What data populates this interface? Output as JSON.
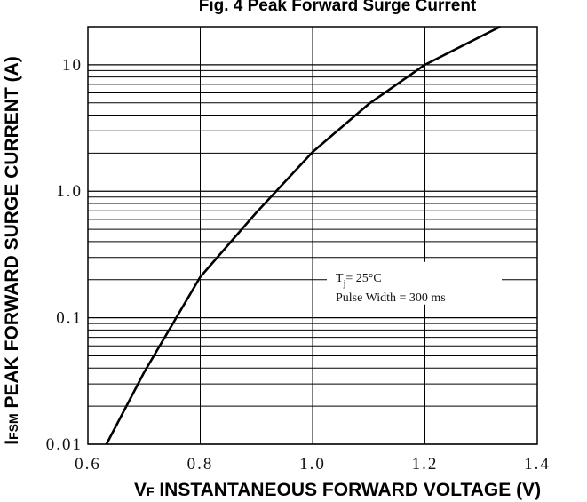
{
  "chart_data": {
    "type": "line",
    "title": "Fig. 4 Peak Forward Surge Current",
    "xlabel_parts": [
      "V",
      "F",
      " INSTANTANEOUS FORWARD VOLTAGE (V)"
    ],
    "ylabel_parts": [
      "I",
      "FSM",
      " PEAK FORWARD SURGE CURRENT (A)"
    ],
    "annotation": {
      "line1": [
        "T",
        "j",
        "= 25°C"
      ],
      "line2": "Pulse Width = 300 ms",
      "at": [
        1.2,
        0.2
      ]
    },
    "log_y": true,
    "grid": true,
    "color": "#000000",
    "xlim": [
      0.6,
      1.4
    ],
    "xticks": [
      0.6,
      0.8,
      {
        "value": 1,
        "label": "1.0"
      },
      1.2,
      1.4
    ],
    "ylim": [
      0.01,
      20
    ],
    "yticks": [
      0.01,
      0.1,
      {
        "value": 1,
        "label": "1.0"
      },
      10
    ],
    "y_minor_ticks": [
      0.02,
      0.03,
      0.04,
      0.05,
      0.06,
      0.07,
      0.08,
      0.09,
      0.2,
      0.3,
      0.4,
      0.5,
      0.6,
      0.7,
      0.8,
      0.9,
      2,
      3,
      4,
      5,
      6,
      7,
      8,
      9
    ],
    "series": [
      {
        "x": [
          0.633,
          0.7,
          0.8,
          0.9,
          1.0,
          1.1,
          1.2,
          1.334
        ],
        "values": [
          0.01,
          0.037,
          0.21,
          0.68,
          2.04,
          4.9,
          10,
          20
        ]
      }
    ]
  }
}
